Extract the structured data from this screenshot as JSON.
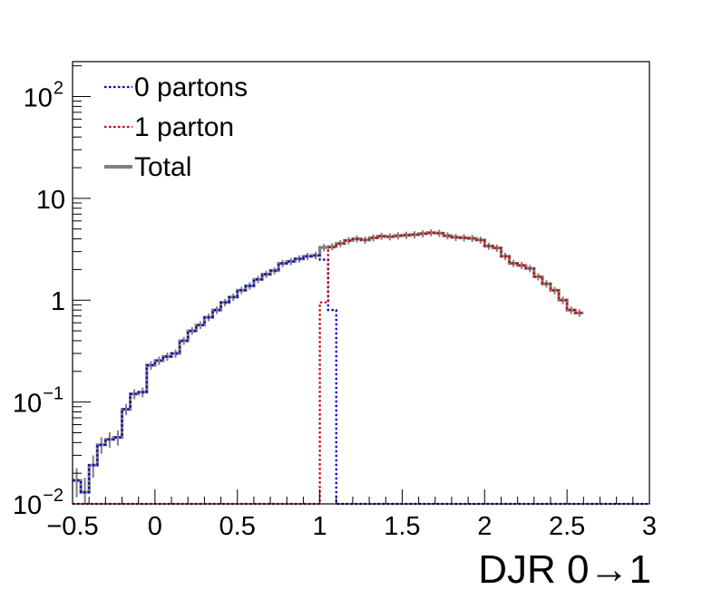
{
  "chart_data": {
    "type": "line",
    "xlabel": "DJR 0→1",
    "xlim": [
      -0.5,
      3
    ],
    "ylim": [
      0.01,
      220
    ],
    "ylog": true,
    "x_ticks": [
      {
        "value": -0.5,
        "label": "−0.5"
      },
      {
        "value": 0,
        "label": "0"
      },
      {
        "value": 0.5,
        "label": "0.5"
      },
      {
        "value": 1,
        "label": "1"
      },
      {
        "value": 1.5,
        "label": "1.5"
      },
      {
        "value": 2,
        "label": "2"
      },
      {
        "value": 2.5,
        "label": "2.5"
      },
      {
        "value": 3,
        "label": "3"
      }
    ],
    "y_ticks": [
      {
        "value": 0.01,
        "base": "10",
        "exp": "−2"
      },
      {
        "value": 0.1,
        "base": "10",
        "exp": "−1"
      },
      {
        "value": 1,
        "base": "1",
        "exp": ""
      },
      {
        "value": 10,
        "base": "10",
        "exp": ""
      },
      {
        "value": 100,
        "base": "10",
        "exp": "2"
      }
    ],
    "bin_width": 0.05,
    "legend_position": "top-left",
    "series": [
      {
        "name": "0 partons",
        "color": "#0000cc",
        "style": "dotted",
        "start": -0.5,
        "values": [
          0.017,
          0.013,
          0.024,
          0.038,
          0.043,
          0.045,
          0.085,
          0.12,
          0.125,
          0.23,
          0.255,
          0.28,
          0.3,
          0.4,
          0.5,
          0.57,
          0.68,
          0.8,
          0.95,
          1.07,
          1.25,
          1.38,
          1.6,
          1.8,
          1.95,
          2.3,
          2.4,
          2.55,
          2.7,
          2.75,
          2.5,
          0.8,
          0.01,
          0.01,
          0.01,
          0.01,
          0.01,
          0.01,
          0.01,
          0.01,
          0.01,
          0.01,
          0.01,
          0.01,
          0.01,
          0.01,
          0.01,
          0.01,
          0.01,
          0.01,
          0.01,
          0.01,
          0.01,
          0.01,
          0.01,
          0.01,
          0.01,
          0.01,
          0.01,
          0.01,
          0.01,
          0.01,
          0.01,
          0.01,
          0.01,
          0.01,
          0.01,
          0.01,
          0.01,
          0.01
        ]
      },
      {
        "name": "1 parton",
        "color": "#cc0000",
        "style": "dotted",
        "start": -0.5,
        "values": [
          0.01,
          0.01,
          0.01,
          0.01,
          0.01,
          0.01,
          0.01,
          0.01,
          0.01,
          0.01,
          0.01,
          0.01,
          0.01,
          0.01,
          0.01,
          0.01,
          0.01,
          0.01,
          0.01,
          0.01,
          0.01,
          0.01,
          0.01,
          0.01,
          0.01,
          0.01,
          0.01,
          0.01,
          0.01,
          0.01,
          0.95,
          3.3,
          3.6,
          3.85,
          4.0,
          3.9,
          4.1,
          4.25,
          4.2,
          4.3,
          4.35,
          4.4,
          4.5,
          4.6,
          4.55,
          4.3,
          4.15,
          4.1,
          4.05,
          3.9,
          3.4,
          3.25,
          2.7,
          2.3,
          2.2,
          2.05,
          1.7,
          1.45,
          1.25,
          1.0,
          0.8,
          0.75
        ]
      },
      {
        "name": "Total",
        "color": "#808080",
        "style": "solid",
        "start": -0.5,
        "values": [
          0.017,
          0.013,
          0.024,
          0.038,
          0.043,
          0.045,
          0.085,
          0.12,
          0.125,
          0.23,
          0.255,
          0.28,
          0.3,
          0.4,
          0.5,
          0.57,
          0.68,
          0.8,
          0.95,
          1.07,
          1.25,
          1.38,
          1.6,
          1.8,
          1.95,
          2.3,
          2.4,
          2.55,
          2.7,
          2.75,
          3.3,
          3.35,
          3.6,
          3.85,
          4.0,
          3.9,
          4.1,
          4.25,
          4.2,
          4.3,
          4.35,
          4.4,
          4.5,
          4.6,
          4.55,
          4.3,
          4.15,
          4.1,
          4.05,
          3.9,
          3.4,
          3.25,
          2.7,
          2.3,
          2.2,
          2.05,
          1.7,
          1.45,
          1.25,
          1.0,
          0.8,
          0.75
        ]
      }
    ]
  }
}
